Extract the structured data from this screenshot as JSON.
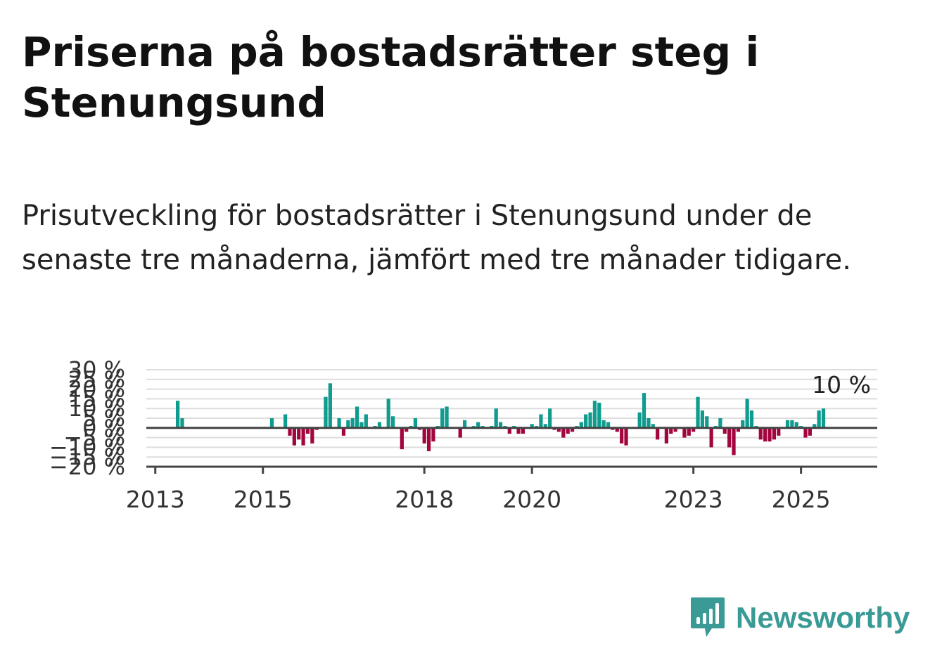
{
  "header": {
    "title": "Priserna på bostadsrätter steg i Stenungsund",
    "subtitle": "Prisutveckling för bostadsrätter i Stenungsund under de senaste tre månaderna, jämfört med tre månader tidigare."
  },
  "brand": {
    "name": "Newsworthy",
    "icon": "newsworthy-logo-icon",
    "color": "#3a9a95"
  },
  "chart_data": {
    "type": "bar",
    "title": "Priserna på bostadsrätter steg i Stenungsund",
    "subtitle": "Prisutveckling för bostadsrätter i Stenungsund under de senaste tre månaderna, jämfört med tre månader tidigare.",
    "xlabel": "",
    "ylabel": "",
    "x_axis": {
      "type": "date",
      "min": "2012-11",
      "max": "2026-06",
      "ticks": [
        "2013",
        "2015",
        "2018",
        "2020",
        "2023",
        "2025"
      ]
    },
    "y_axis": {
      "min": -20,
      "max": 30,
      "unit": "%",
      "ticks": [
        "−20 %",
        "−15 %",
        "−10 %",
        "−5 %",
        "0 %",
        "5 %",
        "10 %",
        "15 %",
        "20 %",
        "25 %",
        "30 %"
      ]
    },
    "grid": true,
    "colors": {
      "positive": "#0f9b8e",
      "negative": "#a3063f",
      "zero_line": "#444444",
      "grid": "#dddddd"
    },
    "annotation": {
      "text": "10 %",
      "x": "2025-06",
      "value": 10
    },
    "series": [
      {
        "points": [
          {
            "x": "2013-06",
            "value": 14
          },
          {
            "x": "2013-07",
            "value": 5
          },
          {
            "x": "2015-03",
            "value": 5
          },
          {
            "x": "2015-06",
            "value": 7
          },
          {
            "x": "2015-07",
            "value": -4
          },
          {
            "x": "2015-08",
            "value": -9
          },
          {
            "x": "2015-09",
            "value": -6
          },
          {
            "x": "2015-10",
            "value": -9
          },
          {
            "x": "2015-11",
            "value": -3
          },
          {
            "x": "2015-12",
            "value": -8
          },
          {
            "x": "2016-01",
            "value": -1
          },
          {
            "x": "2016-03",
            "value": 16
          },
          {
            "x": "2016-04",
            "value": 23
          },
          {
            "x": "2016-06",
            "value": 5
          },
          {
            "x": "2016-07",
            "value": -4
          },
          {
            "x": "2016-08",
            "value": 4
          },
          {
            "x": "2016-09",
            "value": 5
          },
          {
            "x": "2016-10",
            "value": 11
          },
          {
            "x": "2016-11",
            "value": 3
          },
          {
            "x": "2016-12",
            "value": 7
          },
          {
            "x": "2017-02",
            "value": 1
          },
          {
            "x": "2017-03",
            "value": 3
          },
          {
            "x": "2017-05",
            "value": 15
          },
          {
            "x": "2017-06",
            "value": 6
          },
          {
            "x": "2017-08",
            "value": -11
          },
          {
            "x": "2017-09",
            "value": -2
          },
          {
            "x": "2017-10",
            "value": 1
          },
          {
            "x": "2017-11",
            "value": 5
          },
          {
            "x": "2017-12",
            "value": -1
          },
          {
            "x": "2018-01",
            "value": -8
          },
          {
            "x": "2018-02",
            "value": -12
          },
          {
            "x": "2018-03",
            "value": -7
          },
          {
            "x": "2018-04",
            "value": 1
          },
          {
            "x": "2018-05",
            "value": 10
          },
          {
            "x": "2018-06",
            "value": 11
          },
          {
            "x": "2018-09",
            "value": -5
          },
          {
            "x": "2018-10",
            "value": 4
          },
          {
            "x": "2018-12",
            "value": 1
          },
          {
            "x": "2019-01",
            "value": 3
          },
          {
            "x": "2019-02",
            "value": 1
          },
          {
            "x": "2019-04",
            "value": 1
          },
          {
            "x": "2019-05",
            "value": 10
          },
          {
            "x": "2019-06",
            "value": 3
          },
          {
            "x": "2019-07",
            "value": 1
          },
          {
            "x": "2019-08",
            "value": -3
          },
          {
            "x": "2019-09",
            "value": 1
          },
          {
            "x": "2019-10",
            "value": -3
          },
          {
            "x": "2019-11",
            "value": -3
          },
          {
            "x": "2020-01",
            "value": 2
          },
          {
            "x": "2020-02",
            "value": 1
          },
          {
            "x": "2020-03",
            "value": 7
          },
          {
            "x": "2020-04",
            "value": 2
          },
          {
            "x": "2020-05",
            "value": 10
          },
          {
            "x": "2020-06",
            "value": -1
          },
          {
            "x": "2020-07",
            "value": -2
          },
          {
            "x": "2020-08",
            "value": -5
          },
          {
            "x": "2020-09",
            "value": -3
          },
          {
            "x": "2020-10",
            "value": -2
          },
          {
            "x": "2020-11",
            "value": 1
          },
          {
            "x": "2020-12",
            "value": 3
          },
          {
            "x": "2021-01",
            "value": 7
          },
          {
            "x": "2021-02",
            "value": 8
          },
          {
            "x": "2021-03",
            "value": 14
          },
          {
            "x": "2021-04",
            "value": 13
          },
          {
            "x": "2021-05",
            "value": 4
          },
          {
            "x": "2021-06",
            "value": 3
          },
          {
            "x": "2021-07",
            "value": -1
          },
          {
            "x": "2021-08",
            "value": -2
          },
          {
            "x": "2021-09",
            "value": -8
          },
          {
            "x": "2021-10",
            "value": -9
          },
          {
            "x": "2022-01",
            "value": 8
          },
          {
            "x": "2022-02",
            "value": 18
          },
          {
            "x": "2022-03",
            "value": 5
          },
          {
            "x": "2022-04",
            "value": 2
          },
          {
            "x": "2022-05",
            "value": -6
          },
          {
            "x": "2022-07",
            "value": -8
          },
          {
            "x": "2022-08",
            "value": -3
          },
          {
            "x": "2022-09",
            "value": -2
          },
          {
            "x": "2022-11",
            "value": -5
          },
          {
            "x": "2022-12",
            "value": -4
          },
          {
            "x": "2023-01",
            "value": -2
          },
          {
            "x": "2023-02",
            "value": 16
          },
          {
            "x": "2023-03",
            "value": 9
          },
          {
            "x": "2023-04",
            "value": 6
          },
          {
            "x": "2023-05",
            "value": -10
          },
          {
            "x": "2023-06",
            "value": 1
          },
          {
            "x": "2023-07",
            "value": 5
          },
          {
            "x": "2023-08",
            "value": -3
          },
          {
            "x": "2023-09",
            "value": -10
          },
          {
            "x": "2023-10",
            "value": -14
          },
          {
            "x": "2023-11",
            "value": -2
          },
          {
            "x": "2023-12",
            "value": 4
          },
          {
            "x": "2024-01",
            "value": 15
          },
          {
            "x": "2024-02",
            "value": 9
          },
          {
            "x": "2024-03",
            "value": 1
          },
          {
            "x": "2024-04",
            "value": -6
          },
          {
            "x": "2024-05",
            "value": -7
          },
          {
            "x": "2024-06",
            "value": -7
          },
          {
            "x": "2024-07",
            "value": -6
          },
          {
            "x": "2024-08",
            "value": -4
          },
          {
            "x": "2024-10",
            "value": 4
          },
          {
            "x": "2024-11",
            "value": 4
          },
          {
            "x": "2024-12",
            "value": 3
          },
          {
            "x": "2025-01",
            "value": 1
          },
          {
            "x": "2025-02",
            "value": -5
          },
          {
            "x": "2025-03",
            "value": -4
          },
          {
            "x": "2025-04",
            "value": 2
          },
          {
            "x": "2025-05",
            "value": 9
          },
          {
            "x": "2025-06",
            "value": 10
          }
        ]
      }
    ]
  }
}
